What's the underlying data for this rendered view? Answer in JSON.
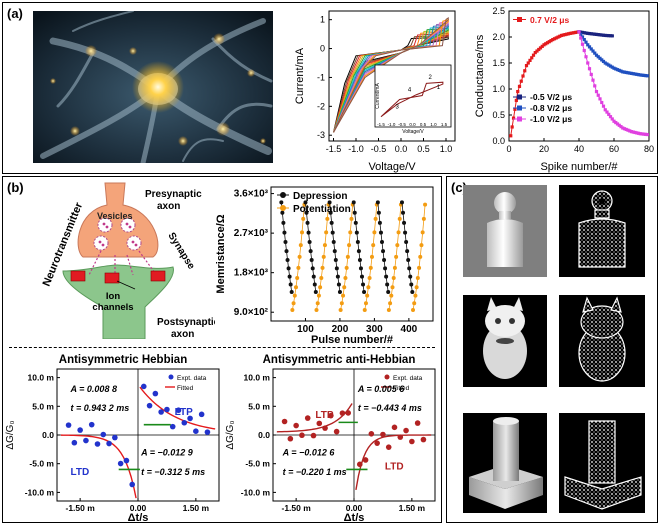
{
  "panels": {
    "a": "(a)",
    "b": "(b)",
    "c": "(c)"
  },
  "iv_plot": {
    "xlabel": "Voltage/V",
    "ylabel": "Current/mA",
    "xticks": [
      "-1.5",
      "-1.0",
      "-0.5",
      "0.0",
      "0.5",
      "1.0"
    ],
    "yticks": [
      "-3",
      "-2",
      "-1",
      "0",
      "1"
    ],
    "inset": {
      "xlabel": "Voltage/V",
      "ylabel": "Current/mA",
      "xticks": [
        "-1.5",
        "-1.0",
        "-0.5",
        "0.0",
        "0.5",
        "1.0",
        "1.5"
      ],
      "labels": [
        "1",
        "2",
        "3",
        "4"
      ]
    }
  },
  "conductance_plot": {
    "xlabel": "Spike number/#",
    "ylabel": "Conductance/ms",
    "xticks": [
      "0",
      "20",
      "40",
      "60",
      "80"
    ],
    "yticks": [
      "0.0",
      "0.5",
      "1.0",
      "1.5",
      "2.0",
      "2.5"
    ],
    "legend_pos": "0.7 V/2 μs",
    "legend_neg": [
      "-0.5 V/2 μs",
      "-0.8 V/2 μs",
      "-1.0 V/2 μs"
    ]
  },
  "synapse": {
    "neurotransmitter": "Neurotransmitter",
    "vesicles": "Vesicles",
    "presynaptic": [
      "Presynaptic",
      "axon"
    ],
    "synapse": "Synapse",
    "ion_channels": [
      "Ion",
      "channels"
    ],
    "postsynaptic": [
      "Postsynaptic",
      "axon"
    ]
  },
  "memristance_plot": {
    "xlabel": "Pulse number/#",
    "ylabel": "Memristance/Ω",
    "xticks": [
      "100",
      "200",
      "300",
      "400"
    ],
    "yticks": [
      "9.0×10²",
      "1.8×10³",
      "2.7×10³",
      "3.6×10³"
    ],
    "legend": [
      "Depression",
      "Potentiation"
    ]
  },
  "hebbian": {
    "title": "Antisymmetric Hebbian",
    "ylabel": "ΔG/G₀",
    "xlabel": "Δt/s",
    "xticks": [
      "-1.50 m",
      "0.00",
      "1.50 m"
    ],
    "yticks": [
      "10.0 m",
      "5.0 m",
      "0.0",
      "-5.0 m",
      "-10.0 m"
    ],
    "legend": [
      "Expt. data",
      "Fitted"
    ],
    "ltp": "LTP",
    "ltd": "LTD",
    "fit_ltp": [
      "A = 0.008 8",
      "t = 0.943 2 ms"
    ],
    "fit_ltd": [
      "A = −0.012 9",
      "t = −0.312 5 ms"
    ]
  },
  "anti_hebbian": {
    "title": "Antisymmetric anti-Hebbian",
    "ylabel": "ΔG/G₀",
    "xlabel": "Δt/s",
    "xticks": [
      "-1.50 m",
      "0.00",
      "1.50 m"
    ],
    "legend": [
      "Expt. data",
      "Fitted"
    ],
    "ltp": "LTP",
    "ltd": "LTD",
    "fit_ltp": [
      "A = 0.005 6",
      "t = −0.443 4 ms"
    ],
    "fit_ltd": [
      "A = −0.012 6",
      "t = −0.220 1 ms"
    ]
  },
  "chart_data": [
    {
      "type": "line",
      "series": [
        {
          "name": "Potentiation (0.7 V/2 μs)",
          "x": [
            1,
            5,
            10,
            15,
            20,
            25,
            30,
            35,
            40
          ],
          "values": [
            0.1,
            0.95,
            1.45,
            1.7,
            1.85,
            1.95,
            2.03,
            2.07,
            2.1
          ]
        },
        {
          "name": "-0.5 V/2 μs",
          "x": [
            40,
            45,
            50,
            55,
            60
          ],
          "values": [
            2.1,
            2.07,
            2.05,
            2.03,
            2.02
          ]
        },
        {
          "name": "-0.8 V/2 μs",
          "x": [
            40,
            45,
            50,
            55,
            60,
            65,
            70,
            75,
            80
          ],
          "values": [
            2.1,
            1.85,
            1.65,
            1.5,
            1.4,
            1.33,
            1.3,
            1.27,
            1.25
          ]
        },
        {
          "name": "-1.0 V/2 μs",
          "x": [
            40,
            45,
            50,
            55,
            60,
            65,
            70,
            75,
            80
          ],
          "values": [
            2.1,
            1.5,
            0.95,
            0.6,
            0.38,
            0.25,
            0.18,
            0.14,
            0.12
          ]
        }
      ],
      "xlabel": "Spike number/#",
      "ylabel": "Conductance/ms",
      "xlim": [
        0,
        80
      ],
      "ylim": [
        0,
        2.5
      ]
    },
    {
      "type": "line",
      "series": [
        {
          "name": "Depression",
          "values": []
        },
        {
          "name": "Potentiation",
          "values": []
        }
      ],
      "xlabel": "Pulse number/#",
      "ylabel": "Memristance/Ω",
      "ylim": [
        900,
        3600
      ]
    }
  ]
}
